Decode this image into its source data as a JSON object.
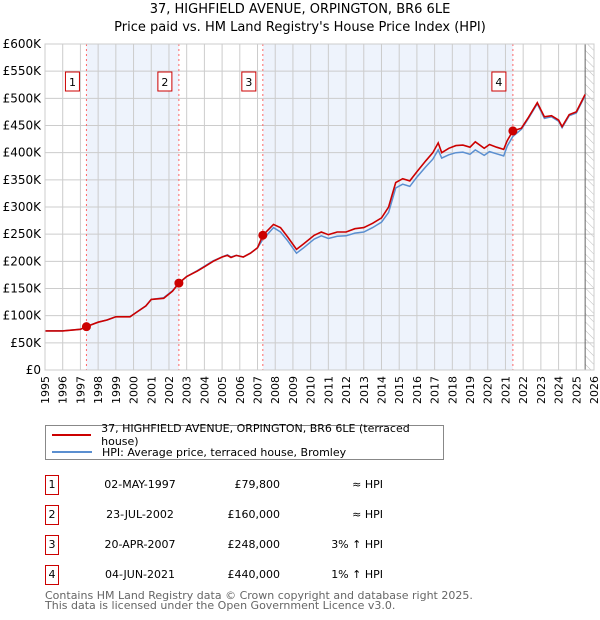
{
  "chart_data": {
    "type": "line",
    "title": "37, HIGHFIELD AVENUE, ORPINGTON, BR6 6LE",
    "subtitle": "Price paid vs. HM Land Registry's House Price Index (HPI)",
    "xlim": [
      1995,
      2026
    ],
    "ylim": [
      0,
      600000
    ],
    "x_ticks": [
      "1995",
      "1996",
      "1997",
      "1998",
      "1999",
      "2000",
      "2001",
      "2002",
      "2003",
      "2004",
      "2005",
      "2006",
      "2007",
      "2008",
      "2009",
      "2010",
      "2011",
      "2012",
      "2013",
      "2014",
      "2015",
      "2016",
      "2017",
      "2018",
      "2019",
      "2020",
      "2021",
      "2022",
      "2023",
      "2024",
      "2025",
      "2026"
    ],
    "y_ticks": [
      {
        "value": 0,
        "label": "£0"
      },
      {
        "value": 50000,
        "label": "£50K"
      },
      {
        "value": 100000,
        "label": "£100K"
      },
      {
        "value": 150000,
        "label": "£150K"
      },
      {
        "value": 200000,
        "label": "£200K"
      },
      {
        "value": 250000,
        "label": "£250K"
      },
      {
        "value": 300000,
        "label": "£300K"
      },
      {
        "value": 350000,
        "label": "£350K"
      },
      {
        "value": 400000,
        "label": "£400K"
      },
      {
        "value": 450000,
        "label": "£450K"
      },
      {
        "value": 500000,
        "label": "£500K"
      },
      {
        "value": 550000,
        "label": "£550K"
      },
      {
        "value": 600000,
        "label": "£600K"
      }
    ],
    "grid": true,
    "forecast_hatch_from": 2025.5,
    "series": [
      {
        "name": "37, HIGHFIELD AVENUE, ORPINGTON, BR6 6LE (terraced house)",
        "color": "#cc0000",
        "points": [
          [
            1995,
            72
          ],
          [
            1996,
            72
          ],
          [
            1997,
            75
          ],
          [
            1997.34,
            79.8
          ],
          [
            1998,
            88
          ],
          [
            1998.5,
            92
          ],
          [
            1999,
            98
          ],
          [
            1999.8,
            98
          ],
          [
            2000.2,
            107
          ],
          [
            2000.7,
            118
          ],
          [
            2001,
            130
          ],
          [
            2001.7,
            132
          ],
          [
            2002.2,
            145
          ],
          [
            2002.56,
            160
          ],
          [
            2003,
            172
          ],
          [
            2003.6,
            182
          ],
          [
            2004,
            190
          ],
          [
            2004.5,
            200
          ],
          [
            2005,
            208
          ],
          [
            2005.3,
            211
          ],
          [
            2005.5,
            207
          ],
          [
            2005.8,
            211
          ],
          [
            2006.2,
            208
          ],
          [
            2006.6,
            215
          ],
          [
            2007,
            225
          ],
          [
            2007.3,
            248
          ],
          [
            2007.9,
            268
          ],
          [
            2008.3,
            262
          ],
          [
            2008.7,
            245
          ],
          [
            2009.2,
            222
          ],
          [
            2009.6,
            232
          ],
          [
            2010.2,
            248
          ],
          [
            2010.6,
            254
          ],
          [
            2011,
            249
          ],
          [
            2011.5,
            254
          ],
          [
            2012,
            254
          ],
          [
            2012.5,
            260
          ],
          [
            2013,
            262
          ],
          [
            2013.5,
            270
          ],
          [
            2014,
            280
          ],
          [
            2014.4,
            300
          ],
          [
            2014.8,
            345
          ],
          [
            2015.2,
            352
          ],
          [
            2015.6,
            348
          ],
          [
            2016,
            365
          ],
          [
            2016.5,
            385
          ],
          [
            2016.9,
            400
          ],
          [
            2017.2,
            418
          ],
          [
            2017.4,
            400
          ],
          [
            2017.8,
            408
          ],
          [
            2018.2,
            413
          ],
          [
            2018.6,
            414
          ],
          [
            2019,
            410
          ],
          [
            2019.3,
            420
          ],
          [
            2019.8,
            408
          ],
          [
            2020.1,
            415
          ],
          [
            2020.5,
            410
          ],
          [
            2020.9,
            406
          ],
          [
            2021.1,
            422
          ],
          [
            2021.42,
            440
          ],
          [
            2021.9,
            445
          ],
          [
            2022.3,
            465
          ],
          [
            2022.8,
            492
          ],
          [
            2023.2,
            466
          ],
          [
            2023.6,
            468
          ],
          [
            2024,
            460
          ],
          [
            2024.2,
            448
          ],
          [
            2024.6,
            470
          ],
          [
            2025,
            475
          ],
          [
            2025.5,
            507
          ]
        ]
      },
      {
        "name": "HPI: Average price, terraced house, Bromley",
        "color": "#5b8fd0",
        "points": [
          [
            1995,
            72
          ],
          [
            1996,
            72
          ],
          [
            1997,
            75
          ],
          [
            1997.34,
            79.8
          ],
          [
            1998,
            88
          ],
          [
            1998.5,
            92
          ],
          [
            1999,
            98
          ],
          [
            1999.8,
            98
          ],
          [
            2000.2,
            107
          ],
          [
            2000.7,
            118
          ],
          [
            2001,
            130
          ],
          [
            2001.7,
            133
          ],
          [
            2002.2,
            146
          ],
          [
            2002.56,
            160
          ],
          [
            2003,
            172
          ],
          [
            2003.6,
            183
          ],
          [
            2004,
            191
          ],
          [
            2004.5,
            201
          ],
          [
            2005,
            208
          ],
          [
            2005.3,
            212
          ],
          [
            2005.5,
            208
          ],
          [
            2005.8,
            211
          ],
          [
            2006.2,
            208
          ],
          [
            2006.6,
            215
          ],
          [
            2007,
            225
          ],
          [
            2007.3,
            240
          ],
          [
            2007.9,
            262
          ],
          [
            2008.3,
            254
          ],
          [
            2008.7,
            238
          ],
          [
            2009.2,
            215
          ],
          [
            2009.6,
            225
          ],
          [
            2010.2,
            241
          ],
          [
            2010.6,
            247
          ],
          [
            2011,
            242
          ],
          [
            2011.5,
            246
          ],
          [
            2012,
            247
          ],
          [
            2012.5,
            252
          ],
          [
            2013,
            254
          ],
          [
            2013.5,
            262
          ],
          [
            2014,
            272
          ],
          [
            2014.4,
            290
          ],
          [
            2014.8,
            335
          ],
          [
            2015.2,
            342
          ],
          [
            2015.6,
            338
          ],
          [
            2016,
            355
          ],
          [
            2016.5,
            374
          ],
          [
            2016.9,
            388
          ],
          [
            2017.2,
            405
          ],
          [
            2017.4,
            390
          ],
          [
            2017.8,
            396
          ],
          [
            2018.2,
            400
          ],
          [
            2018.6,
            401
          ],
          [
            2019,
            397
          ],
          [
            2019.3,
            405
          ],
          [
            2019.8,
            395
          ],
          [
            2020.1,
            402
          ],
          [
            2020.5,
            398
          ],
          [
            2020.9,
            394
          ],
          [
            2021.1,
            412
          ],
          [
            2021.42,
            430
          ],
          [
            2021.9,
            443
          ],
          [
            2022.3,
            463
          ],
          [
            2022.8,
            490
          ],
          [
            2023.2,
            463
          ],
          [
            2023.6,
            466
          ],
          [
            2024,
            458
          ],
          [
            2024.2,
            446
          ],
          [
            2024.6,
            468
          ],
          [
            2025,
            473
          ],
          [
            2025.5,
            505
          ]
        ]
      }
    ],
    "sales": [
      {
        "label": "1",
        "x": 1997.34,
        "value": 79800
      },
      {
        "label": "2",
        "x": 2002.56,
        "value": 160000
      },
      {
        "label": "3",
        "x": 2007.3,
        "value": 248000
      },
      {
        "label": "4",
        "x": 2021.42,
        "value": 440000
      }
    ],
    "shaded_periods": [
      [
        1997.34,
        2002.56
      ],
      [
        2007.3,
        2021.42
      ]
    ]
  },
  "legend": {
    "property": "37, HIGHFIELD AVENUE, ORPINGTON, BR6 6LE (terraced house)",
    "hpi": "HPI: Average price, terraced house, Bromley"
  },
  "table": [
    {
      "num": "1",
      "date": "02-MAY-1997",
      "price": "£79,800",
      "hpi": "≈ HPI"
    },
    {
      "num": "2",
      "date": "23-JUL-2002",
      "price": "£160,000",
      "hpi": "≈ HPI"
    },
    {
      "num": "3",
      "date": "20-APR-2007",
      "price": "£248,000",
      "hpi": "3% ↑ HPI"
    },
    {
      "num": "4",
      "date": "04-JUN-2021",
      "price": "£440,000",
      "hpi": "1% ↑ HPI"
    }
  ],
  "footer": {
    "line1": "Contains HM Land Registry data © Crown copyright and database right 2025.",
    "line2": "This data is licensed under the Open Government Licence v3.0."
  },
  "colors": {
    "property": "#cc0000",
    "hpi": "#5b8fd0",
    "shade": "#eef3fc",
    "grid": "#cccccc"
  }
}
